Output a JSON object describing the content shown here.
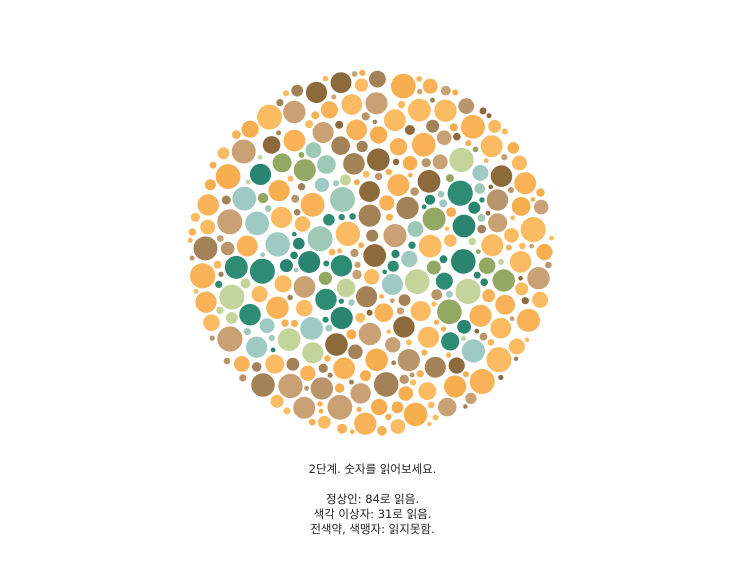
{
  "plate": {
    "colors": {
      "background_dots": [
        "#F9B257",
        "#F7AE4F",
        "#FBBB62",
        "#C9A174",
        "#B8956A",
        "#8C6A3C",
        "#A38257"
      ],
      "figure_dots": [
        "#2A8570",
        "#9FCAC3",
        "#9EC9B6",
        "#93A862",
        "#C3D59B",
        "#2E8B74"
      ]
    },
    "hidden_number": "84"
  },
  "caption": {
    "title": "2단계. 숫자를 읽어보세요.",
    "normal": "정상인: 84로 읽음.",
    "anomaly": "색각 이상자: 31로 읽음.",
    "deficient": "전색약, 색맹자: 읽지못함."
  }
}
